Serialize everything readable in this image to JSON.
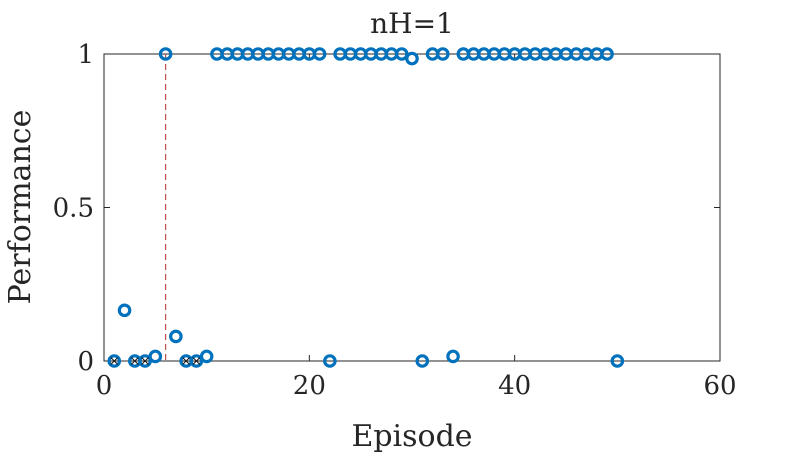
{
  "chart_data": {
    "type": "scatter",
    "title": "nH=1",
    "xlabel": "Episode",
    "ylabel": "Performance",
    "xlim": [
      0,
      60
    ],
    "ylim": [
      0,
      1
    ],
    "xticks": [
      0,
      20,
      40,
      60
    ],
    "xtick_labels": [
      "0",
      "20",
      "40",
      "60"
    ],
    "yticks": [
      0,
      0.5,
      1
    ],
    "ytick_labels": [
      "0",
      "0.5",
      "1"
    ],
    "grid": false,
    "series": [
      {
        "marker": "circle",
        "color": "#0072BD",
        "x": [
          1,
          2,
          3,
          4,
          5,
          6,
          7,
          8,
          9,
          10,
          11,
          12,
          13,
          14,
          15,
          16,
          17,
          18,
          19,
          20,
          21,
          22,
          23,
          24,
          25,
          26,
          27,
          28,
          29,
          30,
          31,
          32,
          33,
          34,
          35,
          36,
          37,
          38,
          39,
          40,
          41,
          42,
          43,
          44,
          45,
          46,
          47,
          48,
          49,
          50
        ],
        "y": [
          0,
          0.165,
          0,
          0,
          0.015,
          1,
          0.08,
          0,
          0,
          0.015,
          1,
          1,
          1,
          1,
          1,
          1,
          1,
          1,
          1,
          1,
          1,
          0,
          1,
          1,
          1,
          1,
          1,
          1,
          1,
          0.985,
          0,
          1,
          1,
          0.015,
          1,
          1,
          1,
          1,
          1,
          1,
          1,
          1,
          1,
          1,
          1,
          1,
          1,
          1,
          1,
          0
        ]
      }
    ],
    "reference_line": {
      "x": 6,
      "style": "dashed",
      "color": "#c0504d"
    },
    "cross_markers_x": [
      1,
      3,
      4,
      8,
      9
    ]
  }
}
